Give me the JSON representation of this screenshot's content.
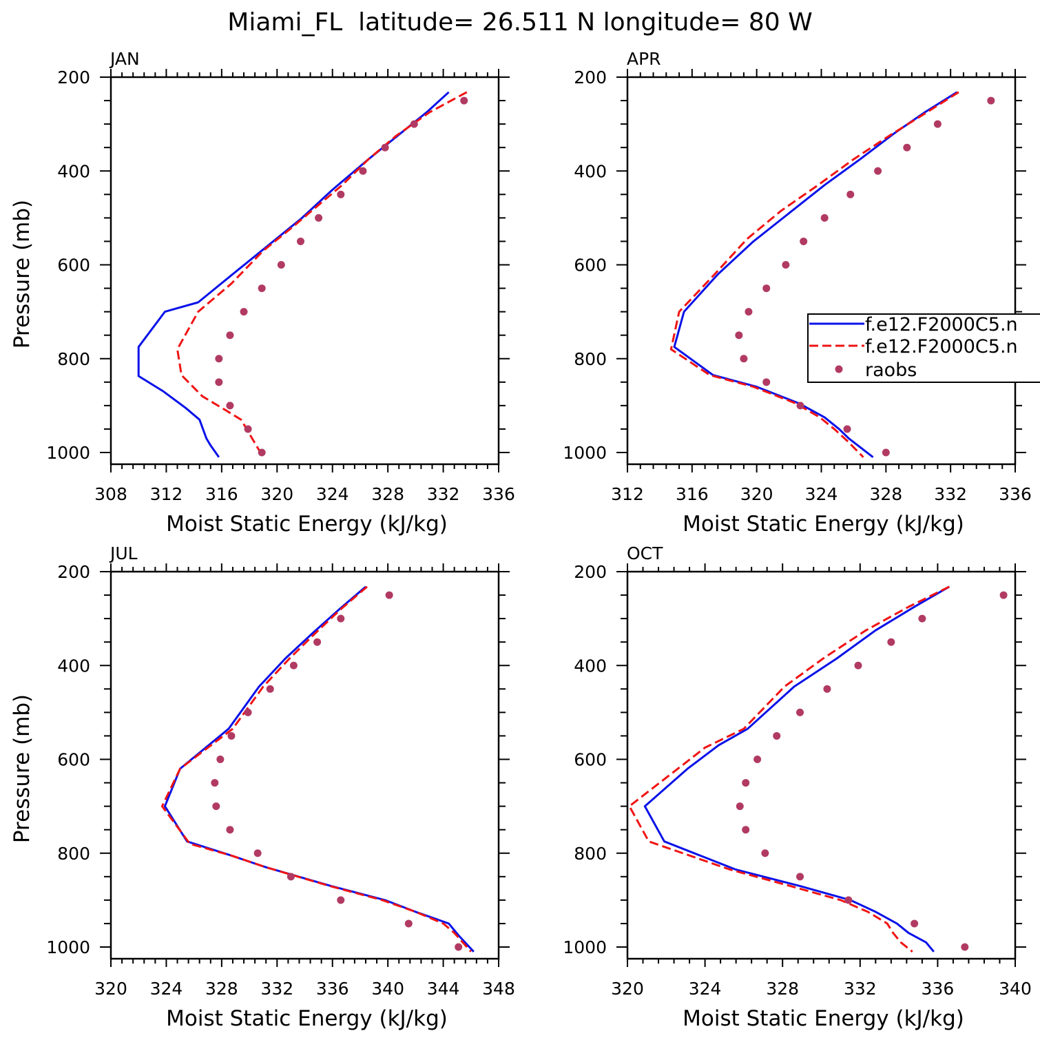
{
  "figure_title": "Miami_FL  latitude= 26.511 N longitude= 80 W",
  "colors": {
    "model1": "#0a12e8",
    "model2": "#f01414",
    "obs": "#b13a63",
    "axis": "#000000"
  },
  "legend": {
    "entries": [
      {
        "label": "f.e12.F2000C5.n",
        "style": "solid",
        "color": "#0a12e8"
      },
      {
        "label": "f.e12.F2000C5.n",
        "style": "dashed",
        "color": "#f01414"
      },
      {
        "label": "raobs",
        "style": "marker",
        "color": "#b13a63"
      }
    ]
  },
  "chart_data": [
    {
      "type": "line",
      "panel_label": "JAN",
      "xlabel": "Moist Static Energy (kJ/kg)",
      "ylabel": "Pressure (mb)",
      "xlim": [
        308,
        336
      ],
      "xticks": [
        308,
        312,
        316,
        320,
        324,
        328,
        332,
        336
      ],
      "ylim": [
        1025,
        200
      ],
      "yticks": [
        200,
        400,
        600,
        800,
        1000
      ],
      "series": [
        {
          "name": "f.e12.F2000C5.n (solid)",
          "style": "solid",
          "x": [
            332.4,
            330.8,
            328.7,
            326.6,
            324.0,
            321.8,
            319.3,
            316.8,
            314.3,
            311.9,
            310.0,
            310.0,
            311.8,
            313.4,
            314.4,
            314.9,
            315.2,
            315.8
          ],
          "y": [
            232,
            275,
            325,
            375,
            440,
            500,
            560,
            620,
            680,
            700,
            775,
            837,
            870,
            905,
            930,
            970,
            985,
            1010
          ]
        },
        {
          "name": "f.e12.F2000C5.n (dashed)",
          "style": "dashed",
          "x": [
            333.7,
            331.0,
            328.6,
            326.6,
            324.7,
            322.9,
            321.1,
            319.0,
            316.7,
            314.3,
            312.8,
            313.1,
            314.6,
            316.3,
            317.4,
            317.8,
            318.3,
            319.0
          ],
          "y": [
            232,
            275,
            325,
            375,
            430,
            475,
            520,
            570,
            640,
            700,
            780,
            835,
            880,
            910,
            930,
            950,
            975,
            1010
          ]
        },
        {
          "name": "raobs",
          "style": "marker",
          "x": [
            333.5,
            329.9,
            327.8,
            326.2,
            324.6,
            323.0,
            321.7,
            320.3,
            318.9,
            317.6,
            316.6,
            315.8,
            315.8,
            316.6,
            317.9,
            318.9
          ],
          "y": [
            250,
            300,
            350,
            400,
            450,
            500,
            550,
            600,
            650,
            700,
            750,
            800,
            850,
            900,
            950,
            1000
          ]
        }
      ]
    },
    {
      "type": "line",
      "panel_label": "APR",
      "xlabel": "Moist Static Energy (kJ/kg)",
      "ylabel": "",
      "xlim": [
        312,
        336
      ],
      "xticks": [
        312,
        316,
        320,
        324,
        328,
        332,
        336
      ],
      "ylim": [
        1025,
        200
      ],
      "yticks": [
        200,
        400,
        600,
        800,
        1000
      ],
      "series": [
        {
          "name": "f.e12.F2000C5.n (solid)",
          "style": "solid",
          "x": [
            332.4,
            330.4,
            328.5,
            326.4,
            324.2,
            322.0,
            319.8,
            317.6,
            315.5,
            314.9,
            317.3,
            320.0,
            322.6,
            324.2,
            325.1,
            325.7,
            327.2
          ],
          "y": [
            232,
            275,
            320,
            375,
            430,
            490,
            550,
            620,
            700,
            775,
            835,
            860,
            895,
            925,
            950,
            970,
            1010
          ]
        },
        {
          "name": "f.e12.F2000C5.n (dashed)",
          "style": "dashed",
          "x": [
            332.5,
            330.3,
            328.2,
            326.0,
            323.8,
            321.5,
            319.4,
            317.4,
            315.2,
            314.7,
            317.1,
            319.8,
            322.4,
            323.9,
            324.8,
            325.6,
            326.6
          ],
          "y": [
            232,
            280,
            325,
            375,
            430,
            485,
            545,
            620,
            700,
            780,
            835,
            860,
            895,
            925,
            950,
            975,
            1010
          ]
        },
        {
          "name": "raobs",
          "style": "marker",
          "x": [
            334.5,
            331.2,
            329.3,
            327.5,
            325.8,
            324.2,
            322.9,
            321.8,
            320.6,
            319.5,
            318.9,
            319.2,
            320.6,
            322.7,
            325.6,
            328.0
          ],
          "y": [
            250,
            300,
            350,
            400,
            450,
            500,
            550,
            600,
            650,
            700,
            750,
            800,
            850,
            900,
            950,
            1000
          ]
        }
      ]
    },
    {
      "type": "line",
      "panel_label": "JUL",
      "xlabel": "Moist Static Energy (kJ/kg)",
      "ylabel": "Pressure (mb)",
      "xlim": [
        320,
        348
      ],
      "xticks": [
        320,
        324,
        328,
        332,
        336,
        340,
        344,
        348
      ],
      "ylim": [
        1025,
        200
      ],
      "yticks": [
        200,
        400,
        600,
        800,
        1000
      ],
      "series": [
        {
          "name": "f.e12.F2000C5.n (solid)",
          "style": "solid",
          "x": [
            338.4,
            336.5,
            334.6,
            332.6,
            330.7,
            328.5,
            325.0,
            323.9,
            325.5,
            328.7,
            331.2,
            335.9,
            339.8,
            342.0,
            344.4,
            345.1,
            346.2
          ],
          "y": [
            232,
            280,
            330,
            385,
            445,
            535,
            620,
            700,
            775,
            805,
            830,
            870,
            900,
            925,
            950,
            975,
            1010
          ]
        },
        {
          "name": "f.e12.F2000C5.n (dashed)",
          "style": "dashed",
          "x": [
            338.5,
            336.6,
            334.8,
            332.9,
            331.0,
            328.8,
            325.0,
            323.7,
            325.7,
            328.7,
            331.2,
            335.8,
            339.6,
            342.0,
            344.0,
            344.8,
            346.0
          ],
          "y": [
            232,
            280,
            330,
            385,
            445,
            535,
            620,
            700,
            780,
            805,
            830,
            870,
            900,
            925,
            950,
            970,
            1010
          ]
        },
        {
          "name": "raobs",
          "style": "marker",
          "x": [
            340.1,
            336.6,
            334.9,
            333.2,
            331.5,
            329.9,
            328.7,
            327.9,
            327.5,
            327.6,
            328.6,
            330.6,
            333.0,
            336.6,
            341.5,
            345.1
          ],
          "y": [
            250,
            300,
            350,
            400,
            450,
            500,
            550,
            600,
            650,
            700,
            750,
            800,
            850,
            900,
            950,
            1000
          ]
        }
      ]
    },
    {
      "type": "line",
      "panel_label": "OCT",
      "xlabel": "Moist Static Energy (kJ/kg)",
      "ylabel": "",
      "xlim": [
        320,
        340
      ],
      "xticks": [
        320,
        324,
        328,
        332,
        336,
        340
      ],
      "ylim": [
        1025,
        200
      ],
      "yticks": [
        200,
        400,
        600,
        800,
        1000
      ],
      "series": [
        {
          "name": "f.e12.F2000C5.n (solid)",
          "style": "solid",
          "x": [
            336.6,
            334.8,
            332.8,
            330.8,
            328.6,
            326.2,
            324.7,
            323.1,
            320.9,
            321.9,
            325.6,
            328.9,
            331.5,
            332.8,
            333.9,
            334.5,
            335.4,
            335.8
          ],
          "y": [
            232,
            275,
            325,
            385,
            445,
            535,
            570,
            620,
            700,
            775,
            835,
            870,
            900,
            925,
            950,
            970,
            990,
            1010
          ]
        },
        {
          "name": "f.e12.F2000C5.n (dashed)",
          "style": "dashed",
          "x": [
            336.6,
            334.5,
            332.3,
            330.1,
            328.1,
            326.0,
            324.0,
            322.6,
            320.1,
            321.1,
            325.3,
            328.4,
            331.0,
            332.4,
            333.4,
            333.7,
            334.1,
            334.7
          ],
          "y": [
            232,
            275,
            325,
            385,
            445,
            535,
            575,
            620,
            700,
            775,
            835,
            870,
            900,
            925,
            950,
            970,
            990,
            1010
          ]
        },
        {
          "name": "raobs",
          "style": "marker",
          "x": [
            339.4,
            335.2,
            333.6,
            331.9,
            330.3,
            328.9,
            327.7,
            326.7,
            326.1,
            325.8,
            326.1,
            327.1,
            328.9,
            331.4,
            334.8,
            337.4
          ],
          "y": [
            250,
            300,
            350,
            400,
            450,
            500,
            550,
            600,
            650,
            700,
            750,
            800,
            850,
            900,
            950,
            1000
          ]
        }
      ]
    }
  ]
}
